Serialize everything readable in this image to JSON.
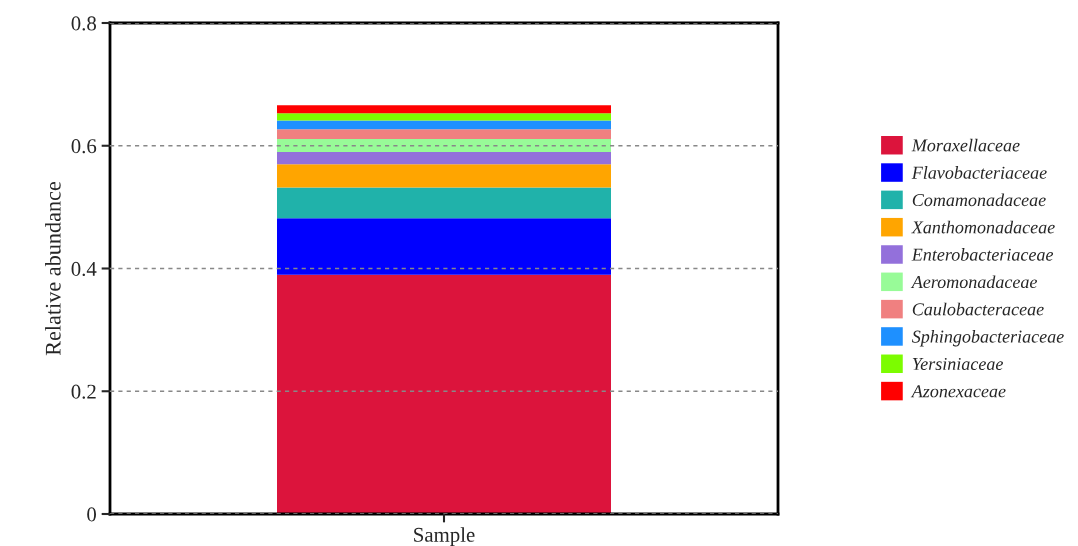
{
  "chart_data": {
    "type": "bar",
    "stacked": true,
    "ylabel": "Relative abundance",
    "categories": [
      "Sample"
    ],
    "series": [
      {
        "name": "Moraxellaceae",
        "color": "#dc143c",
        "values": [
          0.39
        ]
      },
      {
        "name": "Flavobacteriaceae",
        "color": "#0000ff",
        "values": [
          0.092
        ]
      },
      {
        "name": "Comamonadaceae",
        "color": "#20b2aa",
        "values": [
          0.05
        ]
      },
      {
        "name": "Xanthomonadaceae",
        "color": "#ffa500",
        "values": [
          0.038
        ]
      },
      {
        "name": "Enterobacteriaceae",
        "color": "#9370db",
        "values": [
          0.02
        ]
      },
      {
        "name": "Aeromonadaceae",
        "color": "#98fb98",
        "values": [
          0.021
        ]
      },
      {
        "name": "Caulobacteraceae",
        "color": "#f08080",
        "values": [
          0.016
        ]
      },
      {
        "name": "Sphingobacteriaceae",
        "color": "#1e90ff",
        "values": [
          0.014
        ]
      },
      {
        "name": "Yersiniaceae",
        "color": "#7cfc00",
        "values": [
          0.012
        ]
      },
      {
        "name": "Azonexaceae",
        "color": "#ff0000",
        "values": [
          0.013
        ]
      }
    ],
    "ylim": [
      0,
      0.8
    ],
    "yticks": [
      0,
      0.2,
      0.4,
      0.6,
      0.8
    ],
    "grid": "y",
    "legend": "right"
  }
}
